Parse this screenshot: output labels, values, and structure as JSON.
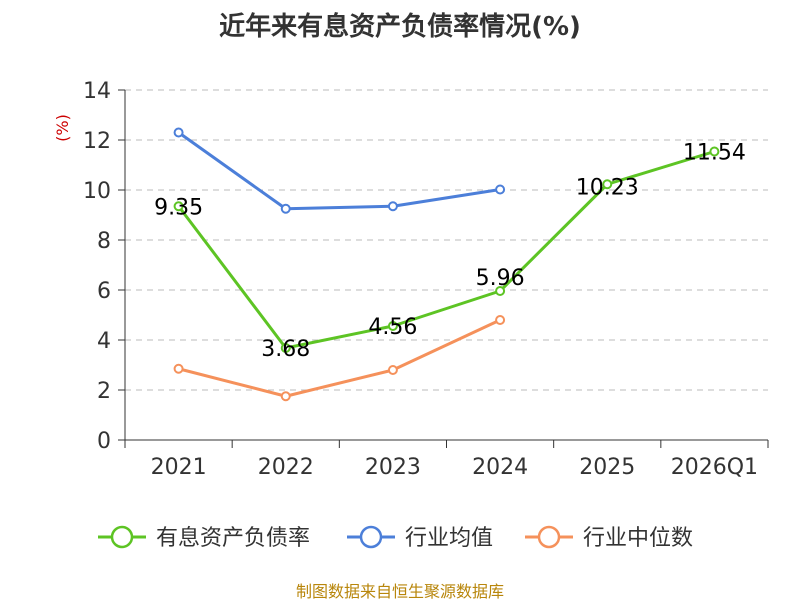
{
  "chart_data": {
    "type": "line",
    "title": "近年来有息资产负债率情况(%)",
    "ylabel": "(%)",
    "xlabel": "",
    "categories": [
      "2021",
      "2022",
      "2023",
      "2024",
      "2025",
      "2026Q1"
    ],
    "ylim": [
      0,
      14
    ],
    "yticks": [
      0,
      2,
      4,
      6,
      8,
      10,
      12,
      14
    ],
    "grid": true,
    "legend_position": "bottom",
    "series": [
      {
        "name": "有息资产负债率",
        "color": "#5dc424",
        "values": [
          9.35,
          3.68,
          4.56,
          5.96,
          10.23,
          11.54
        ],
        "data_labels": [
          "9.35",
          "3.68",
          "4.56",
          "5.96",
          "10.23",
          "11.54"
        ]
      },
      {
        "name": "行业均值",
        "color": "#4c7fd9",
        "values": [
          12.3,
          9.25,
          9.35,
          10.02,
          null,
          null
        ]
      },
      {
        "name": "行业中位数",
        "color": "#f5915b",
        "values": [
          2.85,
          1.75,
          2.8,
          4.8,
          null,
          null
        ]
      }
    ]
  },
  "source_note": "制图数据来自恒生聚源数据库"
}
